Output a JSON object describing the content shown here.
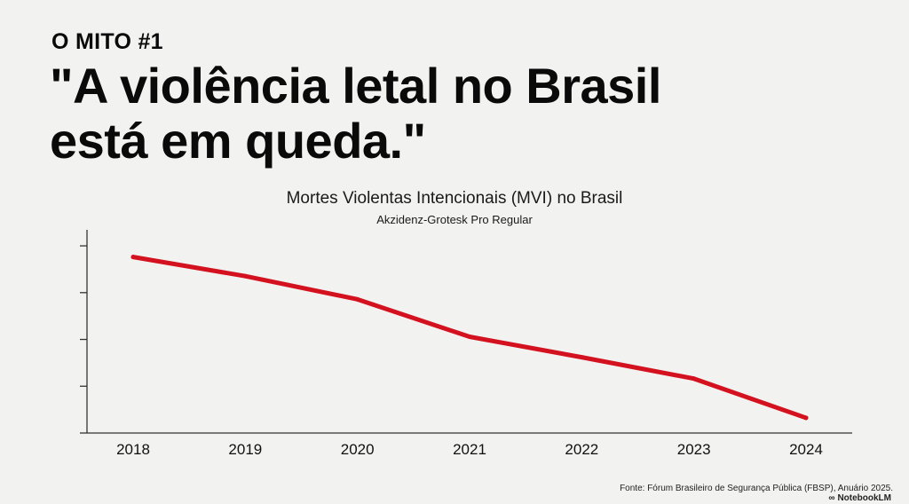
{
  "slide": {
    "eyebrow": "O MITO #1",
    "headline_line1": "\"A violência letal no Brasil",
    "headline_line2": "está em queda.\"",
    "source": "Fonte: Fórum Brasileiro de Segurança Pública (FBSP), Anuário 2025.",
    "brand": "NotebookLM",
    "brand_icon": "notebooklm-logo-icon"
  },
  "chart_data": {
    "type": "line",
    "title": "Mortes Violentas Intencionais (MVI) no Brasil",
    "subtitle": "Akzidenz-Grotesk Pro Regular",
    "xlabel": "",
    "ylabel": "",
    "categories": [
      "2018",
      "2019",
      "2020",
      "2021",
      "2022",
      "2023",
      "2024"
    ],
    "series": [
      {
        "values": [
          51.5,
          47.2,
          42.0,
          33.6,
          29.0,
          24.2,
          15.4
        ],
        "color": "#d4111f"
      }
    ],
    "ylim": [
      12,
      57
    ],
    "y_tick_values": [
      12,
      22.5,
      33,
      43.5,
      54
    ],
    "y_tick_labels_shown": false,
    "grid": false,
    "legend": "none"
  }
}
